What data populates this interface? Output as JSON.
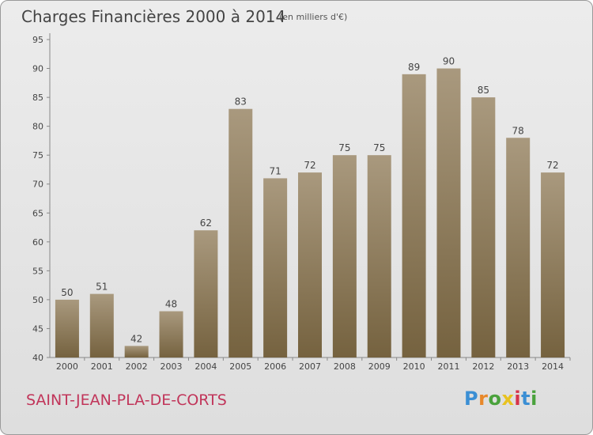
{
  "header": {
    "title": "Charges Financières 2000 à 2014",
    "subtitle": "(en milliers d'€)"
  },
  "footer": {
    "commune": "SAINT-JEAN-PLA-DE-CORTS",
    "logo_text": "Proxiti",
    "logo_colors": [
      "#3b8fd4",
      "#e8882a",
      "#4aa23c",
      "#e8c21f",
      "#d6344b",
      "#3b8fd4",
      "#4aa23c"
    ]
  },
  "chart_data": {
    "type": "bar",
    "title": "Charges Financières 2000 à 2014",
    "subtitle": "(en milliers d'€)",
    "xlabel": "",
    "ylabel": "",
    "categories": [
      "2000",
      "2001",
      "2002",
      "2003",
      "2004",
      "2005",
      "2006",
      "2007",
      "2008",
      "2009",
      "2010",
      "2011",
      "2012",
      "2013",
      "2014"
    ],
    "values": [
      50,
      51,
      42,
      48,
      62,
      83,
      71,
      72,
      75,
      75,
      89,
      90,
      85,
      78,
      72
    ],
    "ylim": [
      40,
      95
    ],
    "yticks": [
      40,
      45,
      50,
      55,
      60,
      65,
      70,
      75,
      80,
      85,
      90,
      95
    ],
    "grid": false,
    "data_labels": true,
    "colors": {
      "bar_top": "#a9997e",
      "bar_bottom": "#75623f",
      "axis": "#888888",
      "text": "#444444"
    }
  }
}
